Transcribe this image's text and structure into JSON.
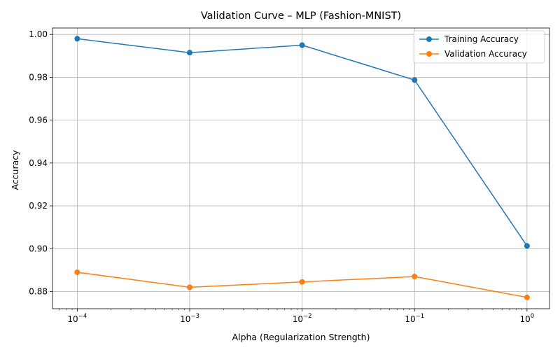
{
  "chart_data": {
    "type": "line",
    "title": "Validation Curve – MLP (Fashion-MNIST)",
    "xlabel": "Alpha (Regularization Strength)",
    "ylabel": "Accuracy",
    "xscale": "log",
    "x": [
      0.0001,
      0.001,
      0.01,
      0.1,
      1
    ],
    "x_tick_labels": [
      {
        "base": "10",
        "exp": "−4"
      },
      {
        "base": "10",
        "exp": "−3"
      },
      {
        "base": "10",
        "exp": "−2"
      },
      {
        "base": "10",
        "exp": "−1"
      },
      {
        "base": "10",
        "exp": "0"
      }
    ],
    "y_ticks": [
      0.88,
      0.9,
      0.92,
      0.94,
      0.96,
      0.98,
      1.0
    ],
    "y_tick_labels": [
      "0.88",
      "0.90",
      "0.92",
      "0.94",
      "0.96",
      "0.98",
      "1.00"
    ],
    "ylim": [
      0.872,
      1.003
    ],
    "grid": true,
    "legend_position": "top-right",
    "series": [
      {
        "name": "Training Accuracy",
        "color": "#1f77b4",
        "values": [
          0.998,
          0.9915,
          0.995,
          0.9787,
          0.9013
        ]
      },
      {
        "name": "Validation Accuracy",
        "color": "#ff7f0e",
        "values": [
          0.889,
          0.882,
          0.8845,
          0.887,
          0.8773
        ]
      }
    ]
  }
}
